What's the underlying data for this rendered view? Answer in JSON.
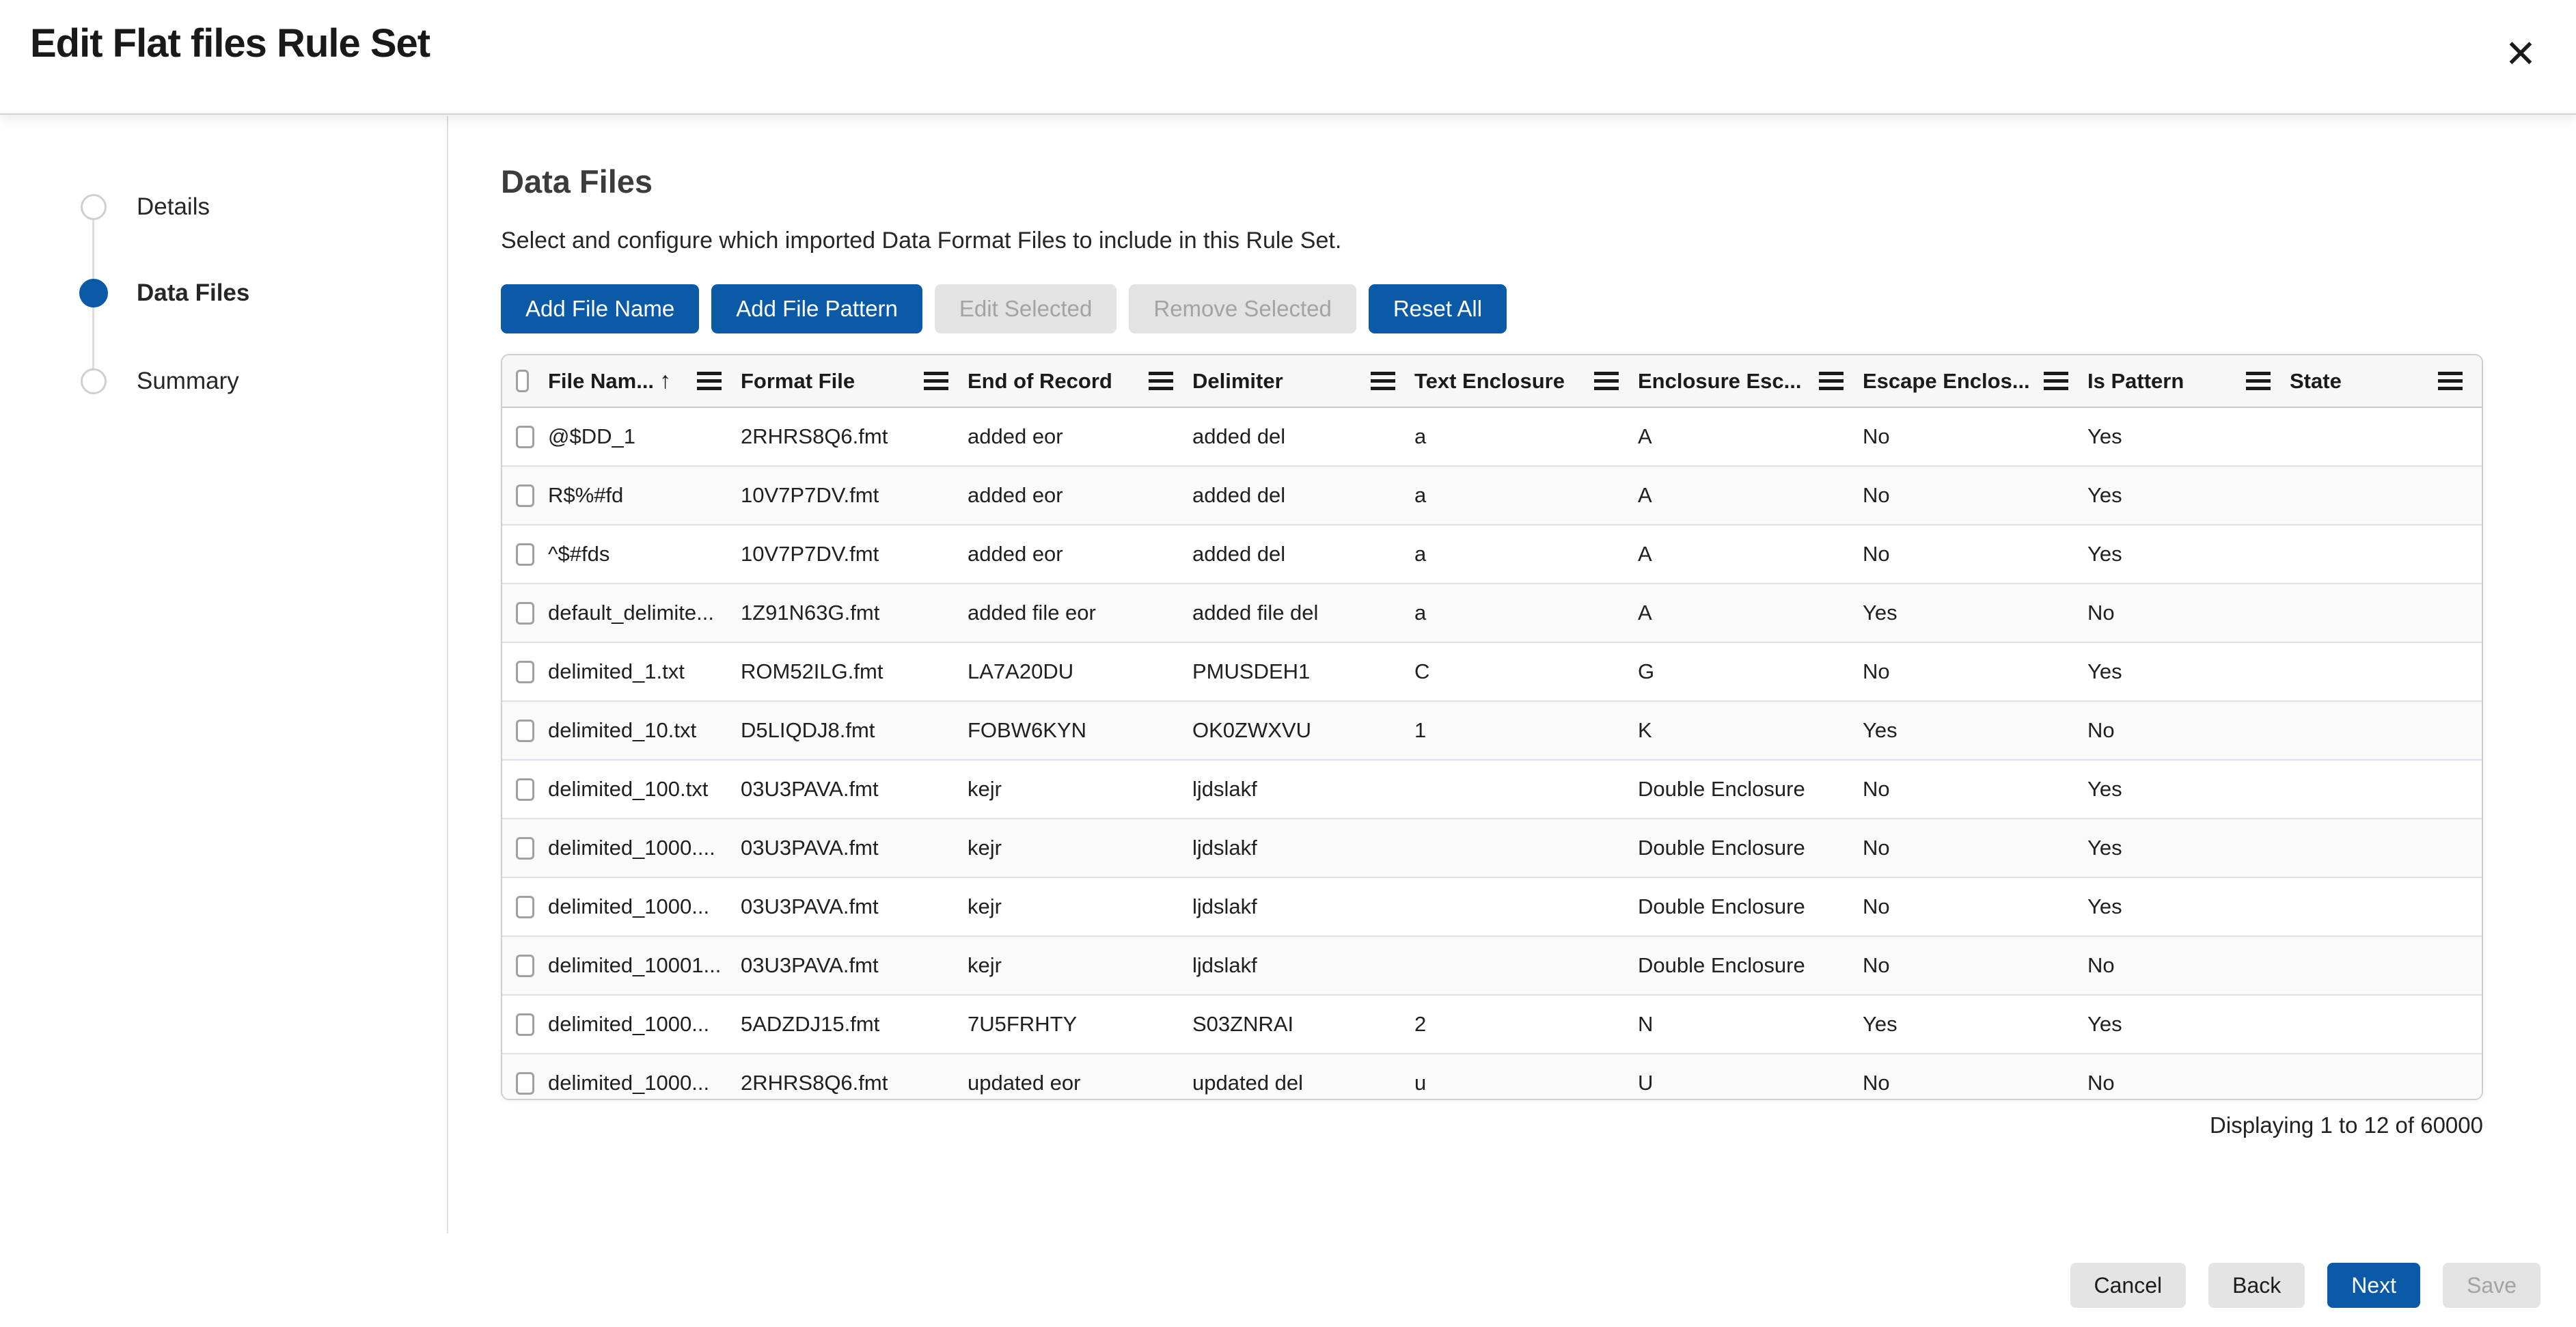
{
  "dialog": {
    "title": "Edit Flat files Rule Set",
    "close_icon": "✕"
  },
  "stepper": {
    "items": [
      {
        "label": "Details",
        "state": "inactive"
      },
      {
        "label": "Data Files",
        "state": "active"
      },
      {
        "label": "Summary",
        "state": "inactive"
      }
    ]
  },
  "content": {
    "heading": "Data Files",
    "description": "Select and configure which imported Data Format Files to include in this Rule Set.",
    "actions": [
      {
        "label": "Add File Name",
        "variant": "primary"
      },
      {
        "label": "Add File Pattern",
        "variant": "primary"
      },
      {
        "label": "Edit Selected",
        "variant": "disabled"
      },
      {
        "label": "Remove Selected",
        "variant": "disabled"
      },
      {
        "label": "Reset All",
        "variant": "primary"
      }
    ],
    "table": {
      "columns": [
        {
          "label": "File Nam...",
          "sort": "asc"
        },
        {
          "label": "Format File",
          "sort": null
        },
        {
          "label": "End of Record",
          "sort": null
        },
        {
          "label": "Delimiter",
          "sort": null
        },
        {
          "label": "Text Enclosure",
          "sort": null
        },
        {
          "label": "Enclosure Esc...",
          "sort": null
        },
        {
          "label": "Escape Enclos...",
          "sort": null
        },
        {
          "label": "Is Pattern",
          "sort": null
        },
        {
          "label": "State",
          "sort": null
        }
      ],
      "rows": [
        {
          "file_name": "@$DD_1",
          "format_file": "2RHRS8Q6.fmt",
          "end_of_record": "added eor",
          "delimiter": "added del",
          "text_enclosure": "a",
          "enclosure_escape": "A",
          "escape_enclosure": "No",
          "is_pattern": "Yes",
          "state": ""
        },
        {
          "file_name": "R$%#fd",
          "format_file": "10V7P7DV.fmt",
          "end_of_record": "added eor",
          "delimiter": "added del",
          "text_enclosure": "a",
          "enclosure_escape": "A",
          "escape_enclosure": "No",
          "is_pattern": "Yes",
          "state": ""
        },
        {
          "file_name": "^$#fds",
          "format_file": "10V7P7DV.fmt",
          "end_of_record": "added eor",
          "delimiter": "added del",
          "text_enclosure": "a",
          "enclosure_escape": "A",
          "escape_enclosure": "No",
          "is_pattern": "Yes",
          "state": ""
        },
        {
          "file_name": "default_delimite...",
          "format_file": "1Z91N63G.fmt",
          "end_of_record": "added file eor",
          "delimiter": "added file del",
          "text_enclosure": "a",
          "enclosure_escape": "A",
          "escape_enclosure": "Yes",
          "is_pattern": "No",
          "state": ""
        },
        {
          "file_name": "delimited_1.txt",
          "format_file": "ROM52ILG.fmt",
          "end_of_record": "LA7A20DU",
          "delimiter": "PMUSDEH1",
          "text_enclosure": "C",
          "enclosure_escape": "G",
          "escape_enclosure": "No",
          "is_pattern": "Yes",
          "state": ""
        },
        {
          "file_name": "delimited_10.txt",
          "format_file": "D5LIQDJ8.fmt",
          "end_of_record": "FOBW6KYN",
          "delimiter": "OK0ZWXVU",
          "text_enclosure": "1",
          "enclosure_escape": "K",
          "escape_enclosure": "Yes",
          "is_pattern": "No",
          "state": ""
        },
        {
          "file_name": "delimited_100.txt",
          "format_file": "03U3PAVA.fmt",
          "end_of_record": "kejr",
          "delimiter": "ljdslakf",
          "text_enclosure": "",
          "enclosure_escape": "Double Enclosure",
          "escape_enclosure": "No",
          "is_pattern": "Yes",
          "state": ""
        },
        {
          "file_name": "delimited_1000....",
          "format_file": "03U3PAVA.fmt",
          "end_of_record": "kejr",
          "delimiter": "ljdslakf",
          "text_enclosure": "",
          "enclosure_escape": "Double Enclosure",
          "escape_enclosure": "No",
          "is_pattern": "Yes",
          "state": ""
        },
        {
          "file_name": "delimited_1000...",
          "format_file": "03U3PAVA.fmt",
          "end_of_record": "kejr",
          "delimiter": "ljdslakf",
          "text_enclosure": "",
          "enclosure_escape": "Double Enclosure",
          "escape_enclosure": "No",
          "is_pattern": "Yes",
          "state": ""
        },
        {
          "file_name": "delimited_10001...",
          "format_file": "03U3PAVA.fmt",
          "end_of_record": "kejr",
          "delimiter": "ljdslakf",
          "text_enclosure": "",
          "enclosure_escape": "Double Enclosure",
          "escape_enclosure": "No",
          "is_pattern": "No",
          "state": ""
        },
        {
          "file_name": "delimited_1000...",
          "format_file": "5ADZDJ15.fmt",
          "end_of_record": "7U5FRHTY",
          "delimiter": "S03ZNRAI",
          "text_enclosure": "2",
          "enclosure_escape": "N",
          "escape_enclosure": "Yes",
          "is_pattern": "Yes",
          "state": ""
        },
        {
          "file_name": "delimited_1000...",
          "format_file": "2RHRS8Q6.fmt",
          "end_of_record": "updated eor",
          "delimiter": "updated del",
          "text_enclosure": "u",
          "enclosure_escape": "U",
          "escape_enclosure": "No",
          "is_pattern": "No",
          "state": ""
        }
      ],
      "pagination": "Displaying 1 to 12 of 60000"
    },
    "footer_actions": [
      {
        "label": "Cancel",
        "variant": "secondary"
      },
      {
        "label": "Back",
        "variant": "secondary"
      },
      {
        "label": "Next",
        "variant": "primary"
      },
      {
        "label": "Save",
        "variant": "disabled"
      }
    ]
  },
  "colors": {
    "primary_blue": "#0b5aa7",
    "disabled_bg": "#e3e3e3",
    "disabled_text": "#a3a3a3",
    "header_bg": "#f7f7f7",
    "row_alt_bg": "#fafafa",
    "row_border": "#dde1ea",
    "table_border": "#cfcfcf"
  }
}
